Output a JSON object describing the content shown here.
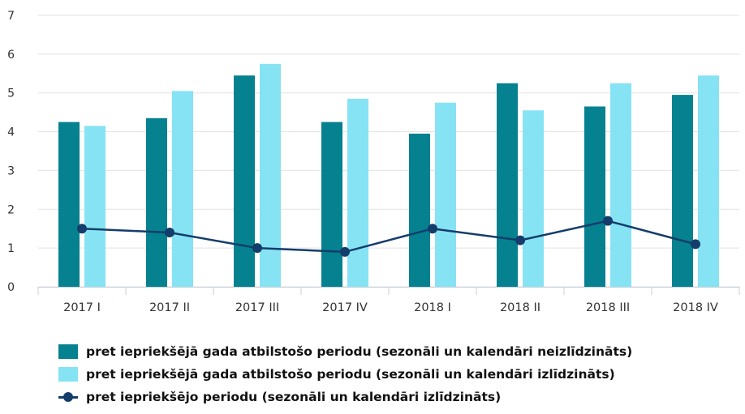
{
  "chart_data": {
    "type": "bar",
    "title": "",
    "xlabel": "",
    "ylabel": "",
    "ylim": [
      0,
      7
    ],
    "yticks": [
      0,
      1,
      2,
      3,
      4,
      5,
      6,
      7
    ],
    "grid": true,
    "legend_position": "bottom-left",
    "categories": [
      "2017 I",
      "2017 II",
      "2017 III",
      "2017 IV",
      "2018 I",
      "2018 II",
      "2018 III",
      "2018 IV"
    ],
    "series": [
      {
        "name": "pret iepriekšējā gada atbilstošo periodu (sezonāli un kalendāri neizlīdzināts)",
        "kind": "bar",
        "color": "#05818f",
        "values": [
          4.25,
          4.35,
          5.45,
          4.25,
          3.95,
          5.25,
          4.65,
          4.95
        ]
      },
      {
        "name": "pret iepriekšējā gada atbilstošo periodu (sezonāli un kalendāri izlīdzināts)",
        "kind": "bar",
        "color": "#86e3f3",
        "values": [
          4.15,
          5.05,
          5.75,
          4.85,
          4.75,
          4.55,
          5.25,
          5.45
        ]
      },
      {
        "name": "pret iepriekšējo periodu (sezonāli un kalendāri izlīdzināts)",
        "kind": "line",
        "color": "#143d6b",
        "values": [
          1.5,
          1.4,
          1.0,
          0.9,
          1.5,
          1.2,
          1.7,
          1.1
        ]
      }
    ]
  }
}
